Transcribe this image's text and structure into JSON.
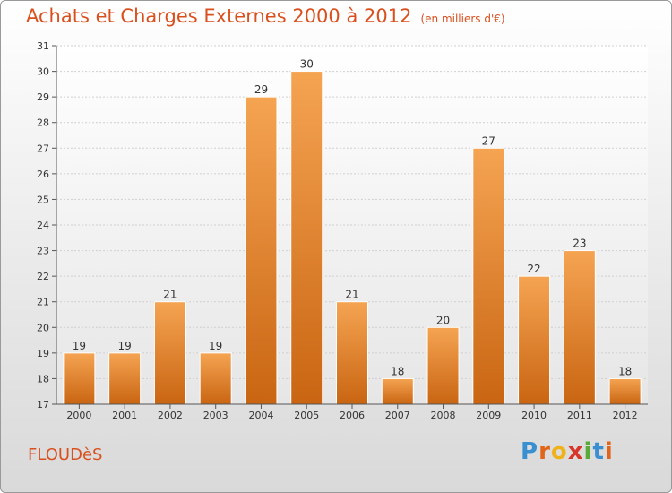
{
  "header": {
    "title": "Achats et Charges Externes 2000 à 2012",
    "subtitle": "(en milliers d'€)"
  },
  "footer": {
    "commune": "FLOUDèS",
    "logo_letters": [
      "P",
      "r",
      "o",
      "x",
      "i",
      "t",
      "i"
    ]
  },
  "colors": {
    "title": "#d9501e",
    "bar_top": "#f5a452",
    "bar_bottom": "#c96512",
    "logo": [
      "#3a8fd1",
      "#e0641a",
      "#f0b21c",
      "#d8352a",
      "#5aaa3a",
      "#3a8fd1",
      "#e0641a"
    ]
  },
  "chart_data": {
    "type": "bar",
    "categories": [
      "2000",
      "2001",
      "2002",
      "2003",
      "2004",
      "2005",
      "2006",
      "2007",
      "2008",
      "2009",
      "2010",
      "2011",
      "2012"
    ],
    "values": [
      19,
      19,
      21,
      19,
      29,
      30,
      21,
      18,
      20,
      27,
      22,
      23,
      18
    ],
    "title": "Achats et Charges Externes 2000 à 2012",
    "xlabel": "",
    "ylabel": "",
    "ylim": [
      17,
      31
    ],
    "yticks": [
      17,
      18,
      19,
      20,
      21,
      22,
      23,
      24,
      25,
      26,
      27,
      28,
      29,
      30,
      31
    ],
    "grid": true
  }
}
